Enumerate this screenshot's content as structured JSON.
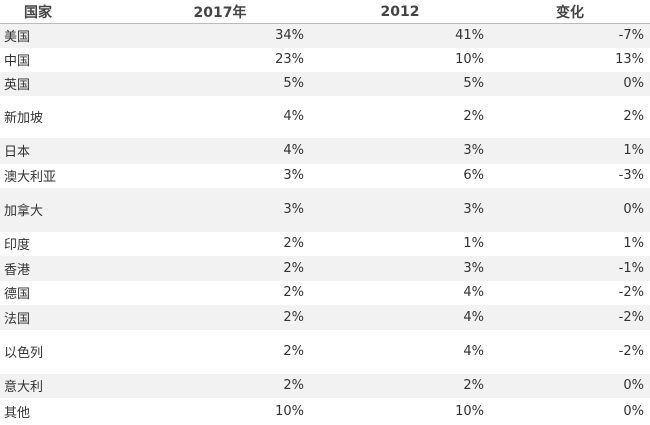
{
  "table": {
    "header": [
      "国家",
      "2017年",
      "2012",
      "变化"
    ],
    "rows": [
      [
        "美国",
        "34%",
        "41%",
        "-7%"
      ],
      [
        "中国",
        "23%",
        "10%",
        "13%"
      ],
      [
        "英国",
        "5%",
        "5%",
        "0%"
      ],
      [
        "新加坡",
        "4%",
        "2%",
        "2%"
      ],
      [
        "日本",
        "4%",
        "3%",
        "1%"
      ],
      [
        "澳大利亚",
        "3%",
        "6%",
        "-3%"
      ],
      [
        "加拿大",
        "3%",
        "3%",
        "0%"
      ],
      [
        "印度",
        "2%",
        "1%",
        "1%"
      ],
      [
        "香港",
        "2%",
        "3%",
        "-1%"
      ],
      [
        "德国",
        "2%",
        "4%",
        "-2%"
      ],
      [
        "法国",
        "2%",
        "4%",
        "-2%"
      ],
      [
        "以色列",
        "2%",
        "4%",
        "-2%"
      ],
      [
        "意大利",
        "2%",
        "2%",
        "0%"
      ],
      [
        "其他",
        "10%",
        "10%",
        "0%"
      ]
    ]
  }
}
